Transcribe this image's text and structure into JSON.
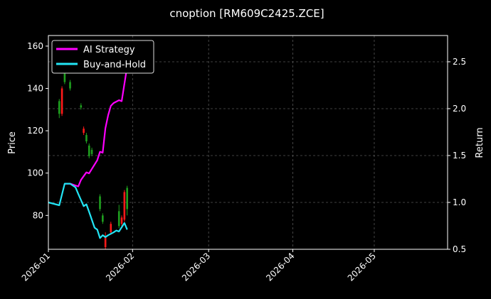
{
  "chart_data": {
    "type": "line",
    "title": "cnoption [RM609C2425.ZCE]",
    "ylabel_left": "Price",
    "ylabel_right": "Return",
    "x_range": [
      "2026-01-01",
      "2026-05-28"
    ],
    "ylim_left": [
      64,
      165
    ],
    "ylim_right": [
      0.5,
      2.78
    ],
    "x_ticks": [
      "2026-01",
      "2026-02",
      "2026-03",
      "2026-04",
      "2026-05"
    ],
    "y_ticks_left": [
      80,
      100,
      120,
      140,
      160
    ],
    "y_ticks_right": [
      0.5,
      1.0,
      1.5,
      2.0,
      2.5
    ],
    "grid": true,
    "legend_position": "top-left",
    "colors": {
      "background": "#000000",
      "ai_strategy": "#ff00ff",
      "buy_and_hold": "#22e5f5",
      "candle_up": "#ff1a1a",
      "candle_down": "#1fa01f",
      "text": "#ffffff",
      "grid": "#555555"
    },
    "series": [
      {
        "name": "AI Strategy",
        "axis": "right",
        "points": [
          [
            "2026-01-07",
            1.2
          ],
          [
            "2026-01-09",
            1.2
          ],
          [
            "2026-01-12",
            1.17
          ],
          [
            "2026-01-13",
            1.24
          ],
          [
            "2026-01-15",
            1.32
          ],
          [
            "2026-01-16",
            1.31
          ],
          [
            "2026-01-19",
            1.45
          ],
          [
            "2026-01-20",
            1.54
          ],
          [
            "2026-01-21",
            1.53
          ],
          [
            "2026-01-22",
            1.79
          ],
          [
            "2026-01-23",
            1.93
          ],
          [
            "2026-01-24",
            2.03
          ],
          [
            "2026-01-25",
            2.06
          ],
          [
            "2026-01-27",
            2.09
          ],
          [
            "2026-01-28",
            2.08
          ],
          [
            "2026-01-30",
            2.45
          ]
        ]
      },
      {
        "name": "Buy-and-Hold",
        "axis": "right",
        "points": [
          [
            "2026-01-01",
            1.0
          ],
          [
            "2026-01-05",
            0.97
          ],
          [
            "2026-01-07",
            1.2
          ],
          [
            "2026-01-09",
            1.2
          ],
          [
            "2026-01-11",
            1.16
          ],
          [
            "2026-01-12",
            1.09
          ],
          [
            "2026-01-14",
            0.96
          ],
          [
            "2026-01-15",
            0.98
          ],
          [
            "2026-01-16",
            0.9
          ],
          [
            "2026-01-18",
            0.73
          ],
          [
            "2026-01-19",
            0.71
          ],
          [
            "2026-01-20",
            0.62
          ],
          [
            "2026-01-21",
            0.65
          ],
          [
            "2026-01-22",
            0.63
          ],
          [
            "2026-01-23",
            0.65
          ],
          [
            "2026-01-25",
            0.68
          ],
          [
            "2026-01-26",
            0.7
          ],
          [
            "2026-01-27",
            0.69
          ],
          [
            "2026-01-29",
            0.78
          ],
          [
            "2026-01-30",
            0.71
          ]
        ]
      }
    ],
    "candles": [
      {
        "date": "2026-01-05",
        "open": 134,
        "close": 128,
        "high": 135,
        "low": 126
      },
      {
        "date": "2026-01-06",
        "open": 128,
        "close": 140,
        "high": 141,
        "low": 127
      },
      {
        "date": "2026-01-07",
        "open": 147,
        "close": 143,
        "high": 148,
        "low": 142
      },
      {
        "date": "2026-01-09",
        "open": 143,
        "close": 140,
        "high": 144,
        "low": 139
      },
      {
        "date": "2026-01-13",
        "open": 132,
        "close": 131,
        "high": 133,
        "low": 130
      },
      {
        "date": "2026-01-14",
        "open": 119,
        "close": 121,
        "high": 122,
        "low": 118
      },
      {
        "date": "2026-01-15",
        "open": 118,
        "close": 115,
        "high": 119,
        "low": 114
      },
      {
        "date": "2026-01-16",
        "open": 113,
        "close": 108,
        "high": 114,
        "low": 107
      },
      {
        "date": "2026-01-17",
        "open": 111,
        "close": 109,
        "high": 112,
        "low": 108
      },
      {
        "date": "2026-01-20",
        "open": 89,
        "close": 83,
        "high": 90,
        "low": 82
      },
      {
        "date": "2026-01-21",
        "open": 80,
        "close": 77,
        "high": 81,
        "low": 76
      },
      {
        "date": "2026-01-22",
        "open": 65,
        "close": 70,
        "high": 72,
        "low": 64
      },
      {
        "date": "2026-01-24",
        "open": 72,
        "close": 76,
        "high": 77,
        "low": 71
      },
      {
        "date": "2026-01-27",
        "open": 82,
        "close": 75,
        "high": 85,
        "low": 74
      },
      {
        "date": "2026-01-28",
        "open": 76,
        "close": 79,
        "high": 80,
        "low": 75
      },
      {
        "date": "2026-01-29",
        "open": 78,
        "close": 91,
        "high": 92,
        "low": 77
      },
      {
        "date": "2026-01-30",
        "open": 93,
        "close": 83,
        "high": 94,
        "low": 80
      }
    ]
  }
}
